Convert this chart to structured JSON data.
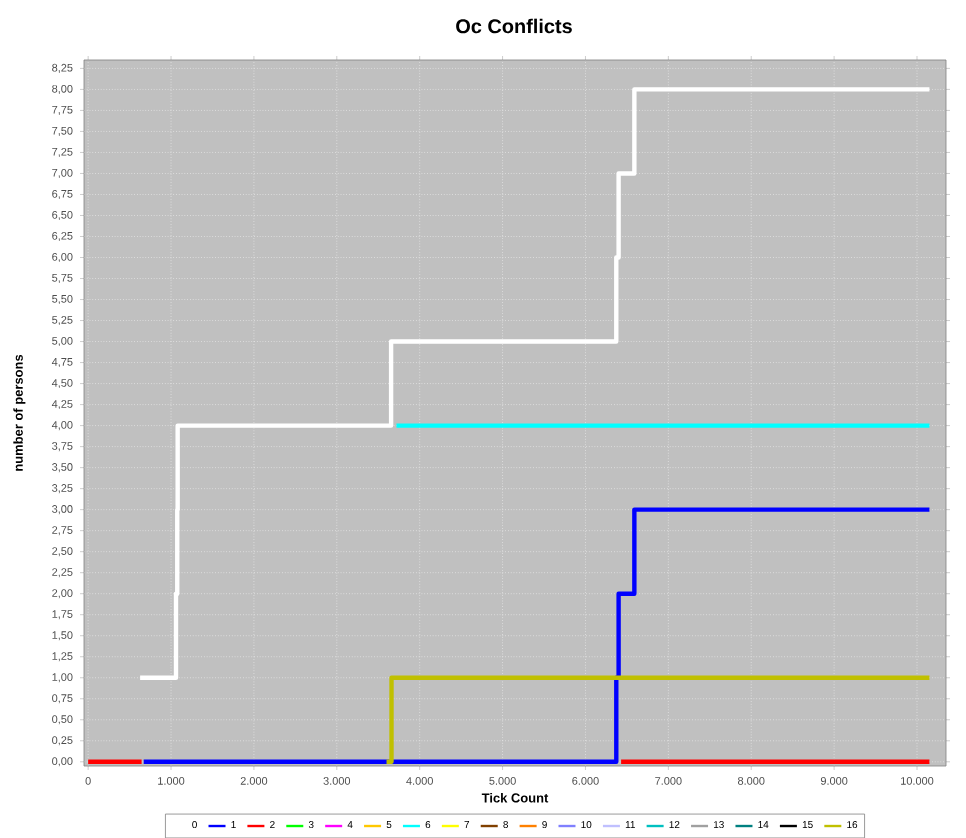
{
  "chart_data": {
    "type": "step",
    "title": "Oc Conflicts",
    "xlabel": "Tick Count",
    "ylabel": "number of persons",
    "xlim": [
      -50,
      10350
    ],
    "ylim": [
      -0.05,
      8.35
    ],
    "xticks": [
      {
        "value": 0,
        "label": "0"
      },
      {
        "value": 1000,
        "label": "1.000"
      },
      {
        "value": 2000,
        "label": "2.000"
      },
      {
        "value": 3000,
        "label": "3.000"
      },
      {
        "value": 4000,
        "label": "4.000"
      },
      {
        "value": 5000,
        "label": "5.000"
      },
      {
        "value": 6000,
        "label": "6.000"
      },
      {
        "value": 7000,
        "label": "7.000"
      },
      {
        "value": 8000,
        "label": "8.000"
      },
      {
        "value": 9000,
        "label": "9.000"
      },
      {
        "value": 10000,
        "label": "10.000"
      }
    ],
    "yticks": [
      {
        "value": 0,
        "label": "0,00"
      },
      {
        "value": 0.25,
        "label": "0,25"
      },
      {
        "value": 0.5,
        "label": "0,50"
      },
      {
        "value": 0.75,
        "label": "0,75"
      },
      {
        "value": 1,
        "label": "1,00"
      },
      {
        "value": 1.25,
        "label": "1,25"
      },
      {
        "value": 1.5,
        "label": "1,50"
      },
      {
        "value": 1.75,
        "label": "1,75"
      },
      {
        "value": 2,
        "label": "2,00"
      },
      {
        "value": 2.25,
        "label": "2,25"
      },
      {
        "value": 2.5,
        "label": "2,50"
      },
      {
        "value": 2.75,
        "label": "2,75"
      },
      {
        "value": 3,
        "label": "3,00"
      },
      {
        "value": 3.25,
        "label": "3,25"
      },
      {
        "value": 3.5,
        "label": "3,50"
      },
      {
        "value": 3.75,
        "label": "3,75"
      },
      {
        "value": 4,
        "label": "4,00"
      },
      {
        "value": 4.25,
        "label": "4,25"
      },
      {
        "value": 4.5,
        "label": "4,50"
      },
      {
        "value": 4.75,
        "label": "4,75"
      },
      {
        "value": 5,
        "label": "5,00"
      },
      {
        "value": 5.25,
        "label": "5,25"
      },
      {
        "value": 5.5,
        "label": "5,50"
      },
      {
        "value": 5.75,
        "label": "5,75"
      },
      {
        "value": 6,
        "label": "6,00"
      },
      {
        "value": 6.25,
        "label": "6,25"
      },
      {
        "value": 6.5,
        "label": "6,50"
      },
      {
        "value": 6.75,
        "label": "6,75"
      },
      {
        "value": 7,
        "label": "7,00"
      },
      {
        "value": 7.25,
        "label": "7,25"
      },
      {
        "value": 7.5,
        "label": "7,50"
      },
      {
        "value": 7.75,
        "label": "7,75"
      },
      {
        "value": 8,
        "label": "8,00"
      },
      {
        "value": 8.25,
        "label": "8,25"
      }
    ],
    "grid": true,
    "legend": "bottom",
    "series": [
      {
        "name": "0",
        "color": "#ffffff",
        "x": [
          627,
          1060,
          1075,
          1080,
          3655,
          6372,
          6400,
          6590,
          10150
        ],
        "values": [
          1,
          2,
          3,
          4,
          5,
          6,
          7,
          8,
          8
        ]
      },
      {
        "name": "1",
        "color": "#0000ff",
        "x": [
          670,
          6372,
          6400,
          6590,
          10150
        ],
        "values": [
          0,
          1,
          2,
          3,
          3
        ]
      },
      {
        "name": "2",
        "color": "#ff0000",
        "x": [
          0,
          645,
          3000,
          6430,
          10150
        ],
        "values": [
          0,
          0,
          null,
          0,
          0
        ]
      },
      {
        "name": "3",
        "color": "#00ff00"
      },
      {
        "name": "4",
        "color": "#ff00ff"
      },
      {
        "name": "5",
        "color": "#ffc800"
      },
      {
        "name": "6",
        "color": "#00ffff",
        "x": [
          3720,
          10150
        ],
        "values": [
          4,
          4
        ]
      },
      {
        "name": "7",
        "color": "#ffff00"
      },
      {
        "name": "8",
        "color": "#804000"
      },
      {
        "name": "9",
        "color": "#ff8000"
      },
      {
        "name": "10",
        "color": "#8080ff"
      },
      {
        "name": "11",
        "color": "#c0c0ff"
      },
      {
        "name": "12",
        "color": "#00c0c0"
      },
      {
        "name": "13",
        "color": "#a0a0a0"
      },
      {
        "name": "14",
        "color": "#008080"
      },
      {
        "name": "15",
        "color": "#000000"
      },
      {
        "name": "16",
        "color": "#c0c000",
        "x": [
          3600,
          3660,
          10150
        ],
        "values": [
          0,
          1,
          1
        ]
      }
    ]
  }
}
